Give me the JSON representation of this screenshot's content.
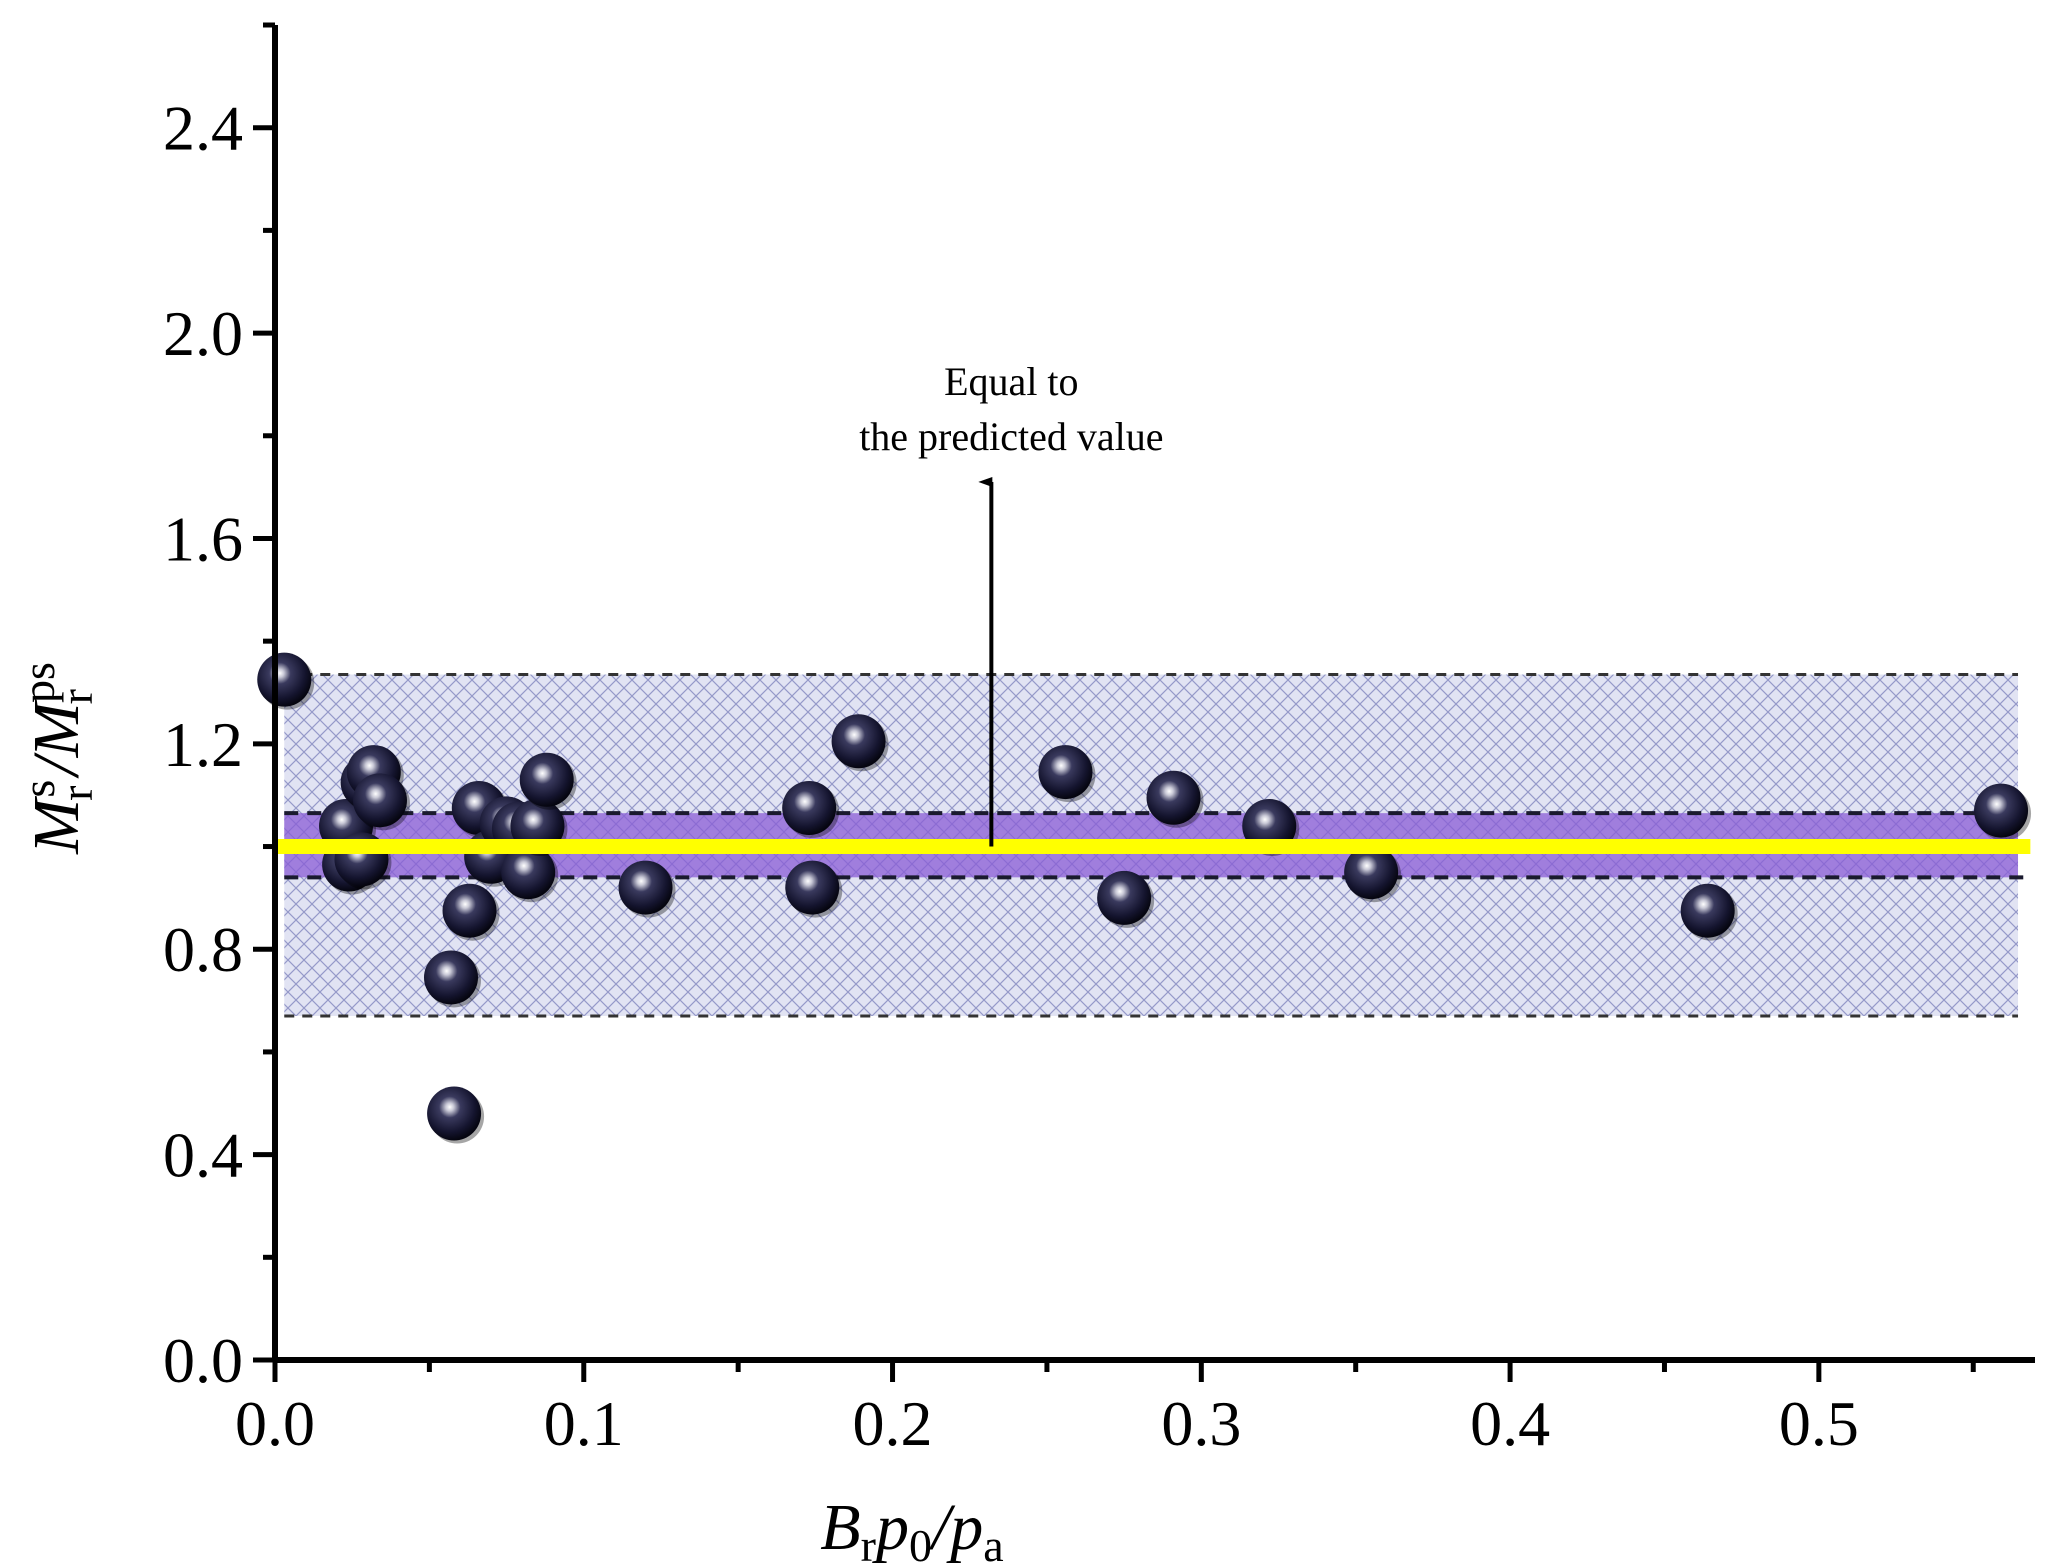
{
  "chart_data": {
    "type": "scatter",
    "title": "",
    "xlabel": {
      "B": "B",
      "r": "r",
      "p": "p",
      "zero": "0",
      "slash": "/",
      "p2": "p",
      "a": "a"
    },
    "ylabel": {
      "M": "M",
      "r": "r",
      "s": "s",
      "slash": "/",
      "M2": "M",
      "r2": "r",
      "ps": "ps"
    },
    "xlim": [
      0.0,
      0.57
    ],
    "ylim": [
      0.0,
      2.6
    ],
    "xticks": [
      "0.0",
      "0.1",
      "0.2",
      "0.3",
      "0.4",
      "0.5"
    ],
    "xtick_values": [
      0.0,
      0.1,
      0.2,
      0.3,
      0.4,
      0.5
    ],
    "yticks": [
      "0.0",
      "0.4",
      "0.8",
      "1.2",
      "1.6",
      "2.0",
      "2.4"
    ],
    "ytick_values": [
      0.0,
      0.4,
      0.8,
      1.2,
      1.6,
      2.0,
      2.4
    ],
    "reference_line": {
      "y": 1.0,
      "color": "#ffff00"
    },
    "outer_band": {
      "lower": 0.67,
      "upper": 1.335,
      "color": "#c8cbe8"
    },
    "inner_band": {
      "lower": 0.94,
      "upper": 1.065,
      "color": "#8a5cd6"
    },
    "annotation": {
      "line1": "Equal to",
      "line2": "the predicted value",
      "x": 0.232,
      "arrow_from_y": 1.0,
      "arrow_to_y": 1.71
    },
    "series": [
      {
        "name": "data",
        "marker_color": "#14142e",
        "points": [
          {
            "x": 0.003,
            "y": 1.325
          },
          {
            "x": 0.023,
            "y": 1.04
          },
          {
            "x": 0.024,
            "y": 0.965
          },
          {
            "x": 0.028,
            "y": 0.975
          },
          {
            "x": 0.03,
            "y": 1.125
          },
          {
            "x": 0.032,
            "y": 1.145
          },
          {
            "x": 0.034,
            "y": 1.09
          },
          {
            "x": 0.057,
            "y": 0.745
          },
          {
            "x": 0.058,
            "y": 0.48
          },
          {
            "x": 0.063,
            "y": 0.875
          },
          {
            "x": 0.066,
            "y": 1.075
          },
          {
            "x": 0.07,
            "y": 0.98
          },
          {
            "x": 0.075,
            "y": 1.045
          },
          {
            "x": 0.079,
            "y": 1.035
          },
          {
            "x": 0.082,
            "y": 0.95
          },
          {
            "x": 0.085,
            "y": 1.04
          },
          {
            "x": 0.088,
            "y": 1.13
          },
          {
            "x": 0.12,
            "y": 0.92
          },
          {
            "x": 0.173,
            "y": 1.075
          },
          {
            "x": 0.174,
            "y": 0.92
          },
          {
            "x": 0.189,
            "y": 1.205
          },
          {
            "x": 0.256,
            "y": 1.145
          },
          {
            "x": 0.275,
            "y": 0.9
          },
          {
            "x": 0.291,
            "y": 1.095
          },
          {
            "x": 0.322,
            "y": 1.04
          },
          {
            "x": 0.355,
            "y": 0.95
          },
          {
            "x": 0.464,
            "y": 0.875
          },
          {
            "x": 0.559,
            "y": 1.07
          }
        ]
      }
    ]
  }
}
